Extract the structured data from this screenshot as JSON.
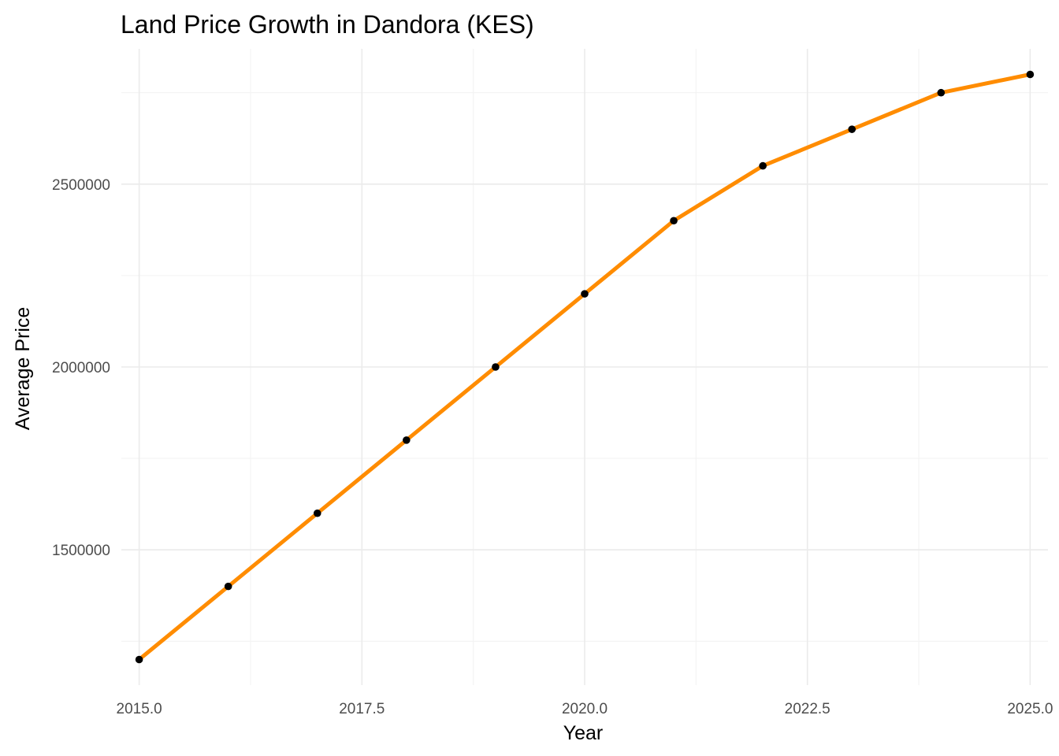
{
  "chart_data": {
    "type": "line",
    "title": "Land Price Growth in Dandora (KES)",
    "xlabel": "Year",
    "ylabel": "Average Price",
    "x": [
      2015,
      2016,
      2017,
      2018,
      2019,
      2020,
      2021,
      2022,
      2023,
      2024,
      2025
    ],
    "series": [
      {
        "values": [
          1200000,
          1400000,
          1600000,
          1800000,
          2000000,
          2200000,
          2400000,
          2550000,
          2650000,
          2750000,
          2800000
        ]
      }
    ],
    "xlim": [
      2014.8,
      2025.2
    ],
    "ylim": [
      1130000,
      2870000
    ],
    "x_ticks": [
      2015.0,
      2017.5,
      2020.0,
      2022.5,
      2025.0
    ],
    "x_tick_labels": [
      "2015.0",
      "2017.5",
      "2020.0",
      "2022.5",
      "2025.0"
    ],
    "x_minor_ticks": [
      2016.25,
      2018.75,
      2021.25,
      2023.75
    ],
    "y_ticks": [
      1500000,
      2000000,
      2500000
    ],
    "y_tick_labels": [
      "1500000",
      "2000000",
      "2500000"
    ],
    "y_minor_ticks": [
      1250000,
      1750000,
      2250000,
      2750000
    ],
    "grid": true,
    "legend": "none",
    "colors": {
      "line": "#ff8c00",
      "point": "#000000"
    }
  }
}
